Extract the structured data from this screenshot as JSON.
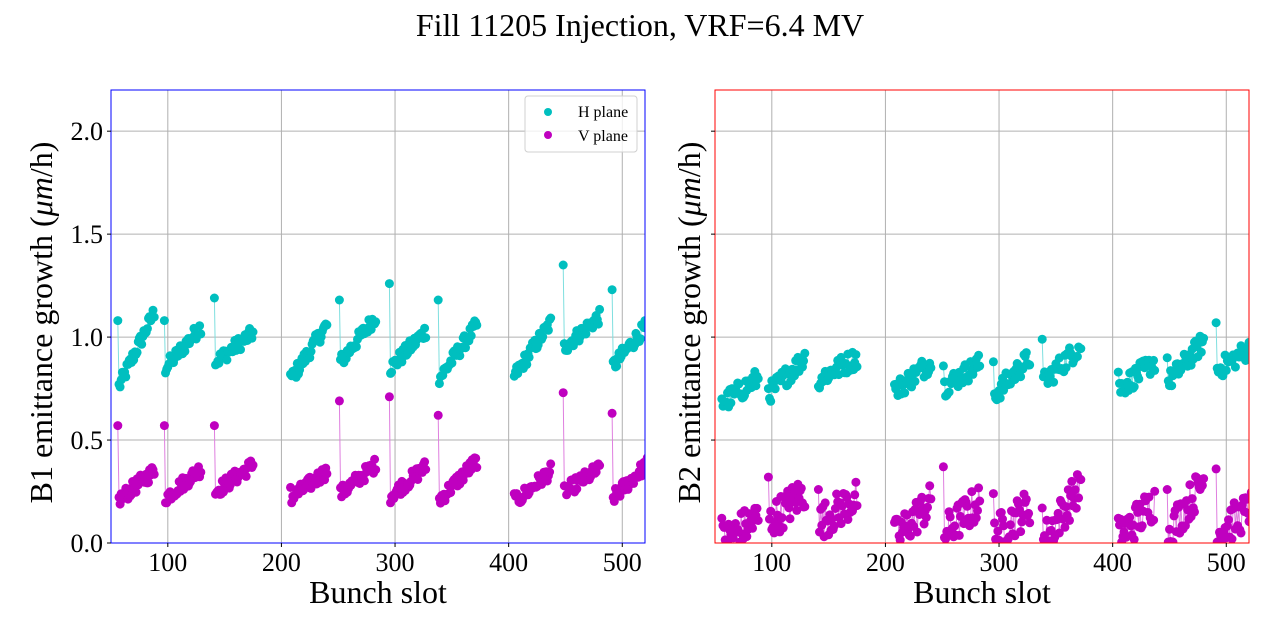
{
  "figure": {
    "title": "Fill 11205 Injection, VRF=6.4 MV"
  },
  "chart_data": [
    {
      "type": "scatter",
      "panel": "left",
      "frame_color": "#0000ff",
      "xlabel": "Bunch slot",
      "ylabel_prefix": "B1 emittance growth (",
      "ylabel_unit": "μm",
      "ylabel_suffix": "/h)",
      "xlim": [
        50,
        520
      ],
      "ylim": [
        0.0,
        2.2
      ],
      "xticks": [
        100,
        200,
        300,
        400,
        500
      ],
      "xtick_labels": [
        "100",
        "200",
        "300",
        "400",
        "500"
      ],
      "yticks": [
        0.0,
        0.5,
        1.0,
        1.5,
        2.0
      ],
      "ytick_labels": [
        "0.0",
        "0.5",
        "1.0",
        "1.5",
        "2.0"
      ],
      "grid": true,
      "legend": {
        "placement": "top-right",
        "entries": [
          {
            "label": "H plane",
            "color": "#00bfbf"
          },
          {
            "label": "V plane",
            "color": "#bf00bf"
          }
        ]
      },
      "trains": [
        {
          "start": 56,
          "end": 88,
          "h_first": 1.08,
          "h_low": 0.76,
          "h_high": 1.12,
          "v_first": 0.57,
          "v_low": 0.21,
          "v_high": 0.35
        },
        {
          "start": 97,
          "end": 129,
          "h_first": 1.08,
          "h_low": 0.85,
          "h_high": 1.05,
          "v_first": 0.57,
          "v_low": 0.22,
          "v_high": 0.36
        },
        {
          "start": 141,
          "end": 175,
          "h_first": 1.19,
          "h_low": 0.88,
          "h_high": 1.02,
          "v_first": 0.57,
          "v_low": 0.25,
          "v_high": 0.38
        },
        {
          "start": 208,
          "end": 240,
          "h_first": 0.82,
          "h_low": 0.8,
          "h_high": 1.06,
          "v_first": 0.27,
          "v_low": 0.22,
          "v_high": 0.35
        },
        {
          "start": 251,
          "end": 283,
          "h_first": 1.18,
          "h_low": 0.88,
          "h_high": 1.1,
          "v_first": 0.69,
          "v_low": 0.24,
          "v_high": 0.38
        },
        {
          "start": 295,
          "end": 327,
          "h_first": 1.26,
          "h_low": 0.85,
          "h_high": 1.03,
          "v_first": 0.71,
          "v_low": 0.23,
          "v_high": 0.37
        },
        {
          "start": 338,
          "end": 372,
          "h_first": 1.18,
          "h_low": 0.8,
          "h_high": 1.06,
          "v_first": 0.62,
          "v_low": 0.21,
          "v_high": 0.4
        },
        {
          "start": 405,
          "end": 437,
          "h_first": 0.81,
          "h_low": 0.82,
          "h_high": 1.07,
          "v_first": 0.24,
          "v_low": 0.2,
          "v_high": 0.35
        },
        {
          "start": 448,
          "end": 480,
          "h_first": 1.35,
          "h_low": 0.95,
          "h_high": 1.1,
          "v_first": 0.73,
          "v_low": 0.25,
          "v_high": 0.36
        },
        {
          "start": 491,
          "end": 525,
          "h_first": 1.23,
          "h_low": 0.86,
          "h_high": 1.08,
          "v_first": 0.63,
          "v_low": 0.22,
          "v_high": 0.4
        }
      ]
    },
    {
      "type": "scatter",
      "panel": "right",
      "frame_color": "#ff0000",
      "xlabel": "Bunch slot",
      "ylabel_prefix": "B2 emittance growth (",
      "ylabel_unit": "μm",
      "ylabel_suffix": "/h)",
      "xlim": [
        50,
        520
      ],
      "ylim": [
        0.0,
        2.2
      ],
      "xticks": [
        100,
        200,
        300,
        400,
        500
      ],
      "xtick_labels": [
        "100",
        "200",
        "300",
        "400",
        "500"
      ],
      "yticks": [
        0.5,
        1.0,
        1.5,
        2.0
      ],
      "ytick_labels": [],
      "grid": true,
      "trains": [
        {
          "start": 56,
          "end": 88,
          "h_first": 0.7,
          "h_low": 0.68,
          "h_high": 0.8,
          "v_first": 0.12,
          "v_low": 0.01,
          "v_high": 0.12
        },
        {
          "start": 97,
          "end": 129,
          "h_first": 0.75,
          "h_low": 0.73,
          "h_high": 0.9,
          "v_first": 0.32,
          "v_low": 0.1,
          "v_high": 0.25
        },
        {
          "start": 141,
          "end": 175,
          "h_first": 0.76,
          "h_low": 0.8,
          "h_high": 0.9,
          "v_first": 0.26,
          "v_low": 0.1,
          "v_high": 0.22
        },
        {
          "start": 208,
          "end": 240,
          "h_first": 0.77,
          "h_low": 0.74,
          "h_high": 0.88,
          "v_first": 0.1,
          "v_low": 0.03,
          "v_high": 0.2
        },
        {
          "start": 251,
          "end": 283,
          "h_first": 0.86,
          "h_low": 0.76,
          "h_high": 0.87,
          "v_first": 0.37,
          "v_low": 0.05,
          "v_high": 0.2
        },
        {
          "start": 295,
          "end": 327,
          "h_first": 0.88,
          "h_low": 0.72,
          "h_high": 0.9,
          "v_first": 0.24,
          "v_low": 0.04,
          "v_high": 0.18
        },
        {
          "start": 338,
          "end": 372,
          "h_first": 0.99,
          "h_low": 0.78,
          "h_high": 0.96,
          "v_first": 0.17,
          "v_low": 0.01,
          "v_high": 0.28
        },
        {
          "start": 405,
          "end": 437,
          "h_first": 0.83,
          "h_low": 0.75,
          "h_high": 0.88,
          "v_first": 0.12,
          "v_low": 0.03,
          "v_high": 0.2
        },
        {
          "start": 448,
          "end": 480,
          "h_first": 0.9,
          "h_low": 0.78,
          "h_high": 0.98,
          "v_first": 0.26,
          "v_low": 0.05,
          "v_high": 0.3
        },
        {
          "start": 491,
          "end": 525,
          "h_first": 1.07,
          "h_low": 0.84,
          "h_high": 0.96,
          "v_first": 0.36,
          "v_low": 0.05,
          "v_high": 0.18
        }
      ]
    }
  ]
}
